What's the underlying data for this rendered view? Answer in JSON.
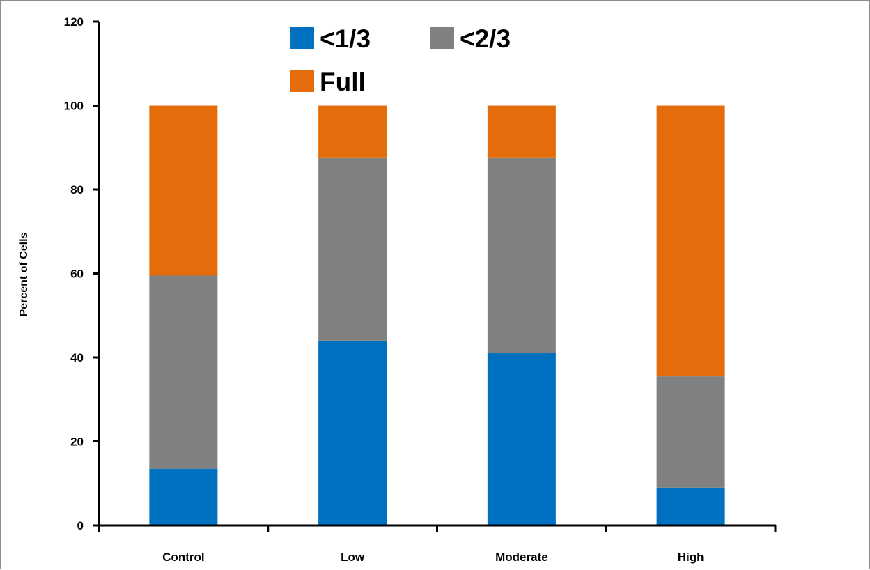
{
  "chart_data": {
    "type": "bar",
    "stacked": true,
    "title": "",
    "xlabel": "",
    "ylabel": "Percent of Cells",
    "ylim": [
      0,
      120
    ],
    "yticks": [
      0,
      20,
      40,
      60,
      80,
      100,
      120
    ],
    "categories": [
      "Control",
      "Low",
      "Moderate",
      "High"
    ],
    "series": [
      {
        "name": "<1/3",
        "color": "#0070C0",
        "values": [
          13.5,
          44,
          41,
          9
        ]
      },
      {
        "name": "<2/3",
        "color": "#808080",
        "values": [
          46,
          43.5,
          46.5,
          26.5
        ]
      },
      {
        "name": "Full",
        "color": "#E46C0A",
        "values": [
          40.5,
          12.5,
          12.5,
          64.5
        ]
      }
    ],
    "legend": {
      "placement": "top-center"
    },
    "grid": false
  }
}
